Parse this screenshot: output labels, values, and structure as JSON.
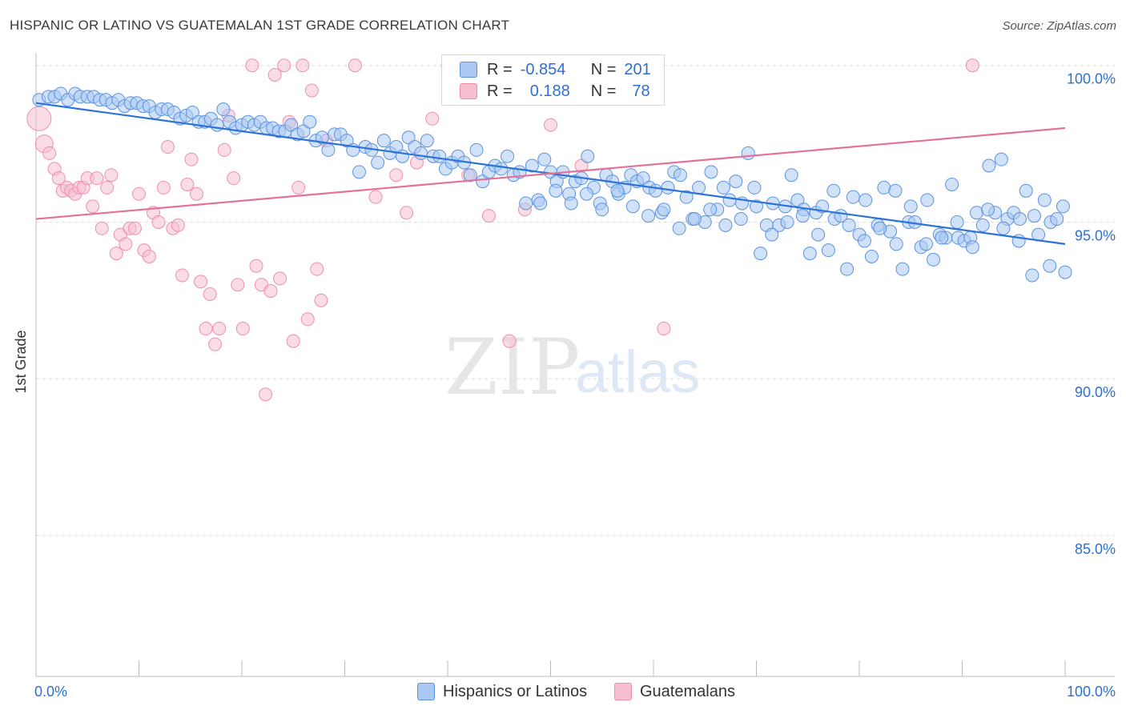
{
  "title": "HISPANIC OR LATINO VS GUATEMALAN 1ST GRADE CORRELATION CHART",
  "source": "Source: ZipAtlas.com",
  "watermark": {
    "zip": "ZIP",
    "atlas": "atlas"
  },
  "legend": {
    "rows": [
      {
        "r_label": "R =",
        "r_value": "-0.854",
        "n_label": "N =",
        "n_value": "201"
      },
      {
        "r_label": "R =",
        "r_value": "0.188",
        "n_label": "N =",
        "n_value": "78"
      }
    ]
  },
  "bottom_legend": {
    "items": [
      "Hispanics or Latinos",
      "Guatemalans"
    ]
  },
  "colors": {
    "blue_fill": "#aac8f2",
    "blue_stroke": "#5b93e0",
    "blue_line": "#2d72d6",
    "pink_fill": "#f6bfd0",
    "pink_stroke": "#ee8fae",
    "pink_line": "#e5709a",
    "tick_text": "#2e6fd1",
    "grid": "#dddddd"
  },
  "chart_data": {
    "type": "scatter",
    "title": "HISPANIC OR LATINO VS GUATEMALAN 1ST GRADE CORRELATION CHART",
    "xlabel": "",
    "ylabel": "1st Grade",
    "xlim": [
      0,
      100
    ],
    "ylim": [
      80.5,
      100.3
    ],
    "x_tick_labels": [
      "0.0%",
      "100.0%"
    ],
    "y_ticks": [
      100,
      95,
      90,
      85
    ],
    "y_tick_labels": [
      "100.0%",
      "95.0%",
      "90.0%",
      "85.0%"
    ],
    "grid": "dashed-horizontal",
    "series": [
      {
        "name": "Hispanics or Latinos",
        "color": "#5b93e0",
        "trend": {
          "x": [
            0,
            100
          ],
          "y": [
            98.8,
            94.3
          ]
        },
        "points": [
          [
            0.3,
            98.9
          ],
          [
            1.2,
            99.0
          ],
          [
            1.8,
            99.0
          ],
          [
            2.4,
            99.1
          ],
          [
            3.1,
            98.9
          ],
          [
            3.8,
            99.1
          ],
          [
            4.3,
            99.0
          ],
          [
            5.0,
            99.0
          ],
          [
            5.6,
            99.0
          ],
          [
            6.2,
            98.9
          ],
          [
            6.8,
            98.9
          ],
          [
            7.4,
            98.8
          ],
          [
            8.0,
            98.9
          ],
          [
            8.6,
            98.7
          ],
          [
            9.2,
            98.8
          ],
          [
            9.8,
            98.8
          ],
          [
            10.4,
            98.7
          ],
          [
            11.0,
            98.7
          ],
          [
            11.6,
            98.5
          ],
          [
            12.2,
            98.6
          ],
          [
            12.8,
            98.6
          ],
          [
            13.4,
            98.5
          ],
          [
            14.0,
            98.3
          ],
          [
            14.6,
            98.4
          ],
          [
            15.2,
            98.5
          ],
          [
            15.8,
            98.2
          ],
          [
            16.4,
            98.2
          ],
          [
            17.0,
            98.3
          ],
          [
            17.6,
            98.1
          ],
          [
            18.2,
            98.6
          ],
          [
            18.8,
            98.2
          ],
          [
            19.4,
            98.0
          ],
          [
            20.0,
            98.1
          ],
          [
            20.6,
            98.2
          ],
          [
            21.2,
            98.1
          ],
          [
            21.8,
            98.2
          ],
          [
            22.4,
            98.0
          ],
          [
            23.0,
            98.0
          ],
          [
            23.6,
            97.9
          ],
          [
            24.2,
            97.9
          ],
          [
            24.8,
            98.1
          ],
          [
            25.4,
            97.8
          ],
          [
            26.0,
            97.9
          ],
          [
            26.6,
            98.2
          ],
          [
            27.2,
            97.6
          ],
          [
            27.8,
            97.7
          ],
          [
            28.4,
            97.3
          ],
          [
            29.0,
            97.8
          ],
          [
            29.6,
            97.8
          ],
          [
            30.2,
            97.6
          ],
          [
            30.8,
            97.3
          ],
          [
            31.4,
            96.6
          ],
          [
            32.0,
            97.4
          ],
          [
            32.6,
            97.3
          ],
          [
            33.2,
            96.9
          ],
          [
            33.8,
            97.6
          ],
          [
            34.4,
            97.2
          ],
          [
            35.0,
            97.4
          ],
          [
            35.6,
            97.1
          ],
          [
            36.2,
            97.7
          ],
          [
            36.8,
            97.4
          ],
          [
            37.4,
            97.2
          ],
          [
            38.0,
            97.6
          ],
          [
            38.6,
            97.1
          ],
          [
            39.2,
            97.1
          ],
          [
            39.8,
            96.7
          ],
          [
            40.4,
            96.9
          ],
          [
            41.0,
            97.1
          ],
          [
            41.6,
            96.9
          ],
          [
            42.2,
            96.5
          ],
          [
            42.8,
            97.3
          ],
          [
            43.4,
            96.3
          ],
          [
            44.0,
            96.6
          ],
          [
            44.6,
            96.8
          ],
          [
            45.2,
            96.7
          ],
          [
            45.8,
            97.1
          ],
          [
            46.4,
            96.5
          ],
          [
            47.0,
            96.6
          ],
          [
            47.6,
            95.6
          ],
          [
            48.2,
            96.8
          ],
          [
            48.8,
            95.7
          ],
          [
            49.4,
            97.0
          ],
          [
            50.0,
            96.6
          ],
          [
            50.6,
            96.3
          ],
          [
            51.2,
            96.6
          ],
          [
            51.8,
            95.9
          ],
          [
            52.4,
            96.3
          ],
          [
            53.0,
            96.4
          ],
          [
            53.6,
            97.1
          ],
          [
            54.2,
            96.1
          ],
          [
            54.8,
            95.6
          ],
          [
            55.4,
            96.5
          ],
          [
            56.0,
            96.3
          ],
          [
            56.6,
            95.9
          ],
          [
            57.2,
            96.1
          ],
          [
            57.8,
            96.5
          ],
          [
            58.4,
            96.3
          ],
          [
            59.0,
            96.4
          ],
          [
            59.6,
            96.1
          ],
          [
            60.2,
            96.0
          ],
          [
            60.8,
            95.3
          ],
          [
            61.4,
            96.1
          ],
          [
            62.0,
            96.6
          ],
          [
            62.6,
            96.5
          ],
          [
            63.2,
            95.8
          ],
          [
            63.8,
            95.1
          ],
          [
            64.4,
            96.1
          ],
          [
            65.0,
            95.0
          ],
          [
            65.6,
            96.6
          ],
          [
            66.2,
            95.4
          ],
          [
            66.8,
            96.1
          ],
          [
            67.4,
            95.7
          ],
          [
            68.0,
            96.3
          ],
          [
            68.6,
            95.6
          ],
          [
            69.2,
            97.2
          ],
          [
            69.8,
            96.1
          ],
          [
            70.4,
            94.0
          ],
          [
            71.0,
            94.9
          ],
          [
            71.6,
            95.6
          ],
          [
            72.2,
            94.9
          ],
          [
            72.8,
            95.5
          ],
          [
            73.4,
            96.5
          ],
          [
            74.0,
            95.7
          ],
          [
            74.6,
            95.4
          ],
          [
            75.2,
            94.0
          ],
          [
            75.8,
            95.3
          ],
          [
            76.4,
            95.5
          ],
          [
            77.0,
            94.1
          ],
          [
            77.6,
            95.1
          ],
          [
            78.2,
            95.2
          ],
          [
            78.8,
            93.5
          ],
          [
            79.4,
            95.8
          ],
          [
            80.0,
            94.6
          ],
          [
            80.6,
            95.7
          ],
          [
            81.2,
            93.9
          ],
          [
            81.8,
            94.9
          ],
          [
            82.4,
            96.1
          ],
          [
            83.0,
            94.7
          ],
          [
            83.6,
            94.3
          ],
          [
            84.2,
            93.5
          ],
          [
            84.8,
            95.0
          ],
          [
            85.4,
            95.0
          ],
          [
            86.0,
            94.2
          ],
          [
            86.6,
            95.7
          ],
          [
            87.2,
            93.8
          ],
          [
            87.8,
            94.6
          ],
          [
            88.4,
            94.5
          ],
          [
            89.0,
            96.2
          ],
          [
            89.6,
            94.5
          ],
          [
            90.2,
            94.4
          ],
          [
            90.8,
            94.5
          ],
          [
            91.4,
            95.3
          ],
          [
            92.0,
            94.9
          ],
          [
            92.6,
            96.8
          ],
          [
            93.2,
            95.3
          ],
          [
            93.8,
            97.0
          ],
          [
            94.4,
            95.1
          ],
          [
            95.0,
            95.3
          ],
          [
            95.6,
            95.1
          ],
          [
            96.2,
            96.0
          ],
          [
            96.8,
            93.3
          ],
          [
            97.4,
            94.6
          ],
          [
            98.0,
            95.7
          ],
          [
            98.6,
            95.0
          ],
          [
            99.2,
            95.1
          ],
          [
            99.8,
            95.5
          ],
          [
            100.0,
            93.4
          ],
          [
            98.5,
            93.6
          ],
          [
            97.0,
            95.2
          ],
          [
            95.5,
            94.4
          ],
          [
            94.0,
            94.8
          ],
          [
            92.5,
            95.4
          ],
          [
            91.0,
            94.2
          ],
          [
            89.5,
            95.0
          ],
          [
            88.0,
            94.5
          ],
          [
            86.5,
            94.3
          ],
          [
            85.0,
            95.5
          ],
          [
            83.5,
            96.0
          ],
          [
            82.0,
            94.8
          ],
          [
            80.5,
            94.4
          ],
          [
            79.0,
            94.9
          ],
          [
            77.5,
            96.0
          ],
          [
            76.0,
            94.6
          ],
          [
            74.5,
            95.2
          ],
          [
            73.0,
            95.0
          ],
          [
            71.5,
            94.6
          ],
          [
            70.0,
            95.5
          ],
          [
            68.5,
            95.1
          ],
          [
            67.0,
            94.9
          ],
          [
            65.5,
            95.4
          ],
          [
            64.0,
            95.1
          ],
          [
            62.5,
            94.8
          ],
          [
            61.0,
            95.4
          ],
          [
            59.5,
            95.2
          ],
          [
            58.0,
            95.5
          ],
          [
            56.5,
            96.0
          ],
          [
            55.0,
            95.4
          ],
          [
            53.5,
            95.9
          ],
          [
            52.0,
            95.6
          ],
          [
            50.5,
            96.0
          ],
          [
            49.0,
            95.6
          ]
        ]
      },
      {
        "name": "Guatemalans",
        "color": "#ee8fae",
        "trend": {
          "x": [
            0,
            100
          ],
          "y": [
            95.1,
            98.0
          ]
        },
        "points": [
          [
            0.3,
            98.3
          ],
          [
            0.8,
            97.5
          ],
          [
            1.3,
            97.2
          ],
          [
            1.8,
            96.7
          ],
          [
            2.2,
            96.4
          ],
          [
            2.6,
            96.0
          ],
          [
            3.0,
            96.1
          ],
          [
            3.4,
            96.0
          ],
          [
            3.8,
            95.9
          ],
          [
            4.2,
            96.1
          ],
          [
            4.6,
            96.1
          ],
          [
            5.0,
            96.4
          ],
          [
            5.5,
            95.5
          ],
          [
            5.9,
            96.4
          ],
          [
            6.4,
            94.8
          ],
          [
            6.9,
            96.1
          ],
          [
            7.3,
            96.5
          ],
          [
            7.8,
            94.0
          ],
          [
            8.2,
            94.6
          ],
          [
            8.7,
            94.3
          ],
          [
            9.1,
            94.8
          ],
          [
            9.6,
            94.8
          ],
          [
            10.0,
            95.9
          ],
          [
            10.5,
            94.1
          ],
          [
            11.0,
            93.9
          ],
          [
            11.4,
            95.3
          ],
          [
            11.9,
            95.0
          ],
          [
            12.4,
            96.1
          ],
          [
            12.8,
            97.4
          ],
          [
            13.3,
            94.8
          ],
          [
            13.8,
            94.9
          ],
          [
            14.2,
            93.3
          ],
          [
            14.7,
            96.2
          ],
          [
            15.1,
            97.0
          ],
          [
            15.6,
            95.9
          ],
          [
            16.0,
            93.1
          ],
          [
            16.5,
            91.6
          ],
          [
            16.9,
            92.7
          ],
          [
            17.4,
            91.1
          ],
          [
            17.8,
            91.6
          ],
          [
            18.3,
            97.3
          ],
          [
            18.7,
            98.4
          ],
          [
            19.2,
            96.4
          ],
          [
            19.6,
            93.0
          ],
          [
            20.1,
            91.6
          ],
          [
            21.0,
            100.0
          ],
          [
            21.4,
            93.6
          ],
          [
            21.9,
            93.0
          ],
          [
            22.3,
            89.5
          ],
          [
            22.8,
            92.8
          ],
          [
            23.2,
            99.7
          ],
          [
            23.7,
            93.2
          ],
          [
            24.1,
            100.0
          ],
          [
            24.6,
            98.2
          ],
          [
            25.0,
            91.2
          ],
          [
            25.5,
            96.1
          ],
          [
            25.9,
            100.0
          ],
          [
            26.4,
            91.9
          ],
          [
            26.8,
            99.2
          ],
          [
            27.3,
            93.5
          ],
          [
            27.7,
            92.5
          ],
          [
            28.2,
            97.6
          ],
          [
            31.0,
            100.0
          ],
          [
            33.0,
            95.8
          ],
          [
            35.0,
            96.5
          ],
          [
            37.0,
            96.9
          ],
          [
            38.5,
            98.3
          ],
          [
            40.0,
            100.0
          ],
          [
            42.0,
            96.5
          ],
          [
            44.0,
            95.2
          ],
          [
            46.0,
            91.2
          ],
          [
            47.5,
            95.4
          ],
          [
            50.0,
            98.1
          ],
          [
            53.0,
            96.8
          ],
          [
            60.0,
            100.0
          ],
          [
            61.0,
            91.6
          ],
          [
            91.0,
            100.0
          ],
          [
            36.0,
            95.3
          ]
        ]
      }
    ]
  }
}
